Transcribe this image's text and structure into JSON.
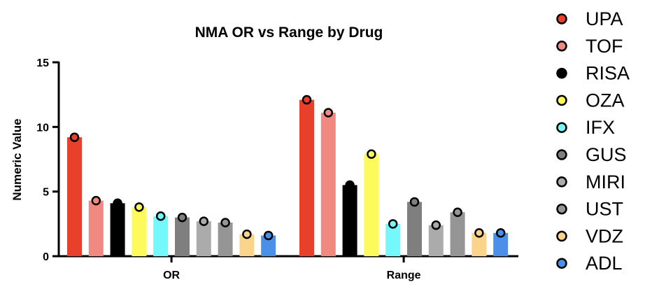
{
  "chart_data": {
    "type": "bar",
    "title": "NMA OR vs Range by Drug",
    "xlabel": "",
    "ylabel": "Numeric Value",
    "ylim": [
      0,
      15
    ],
    "yticks": [
      "0",
      "5",
      "10",
      "15"
    ],
    "categories": [
      "OR",
      "Range"
    ],
    "grid": false,
    "legend_position": "right",
    "series": [
      {
        "name": "UPA",
        "color": "#E8402A",
        "values": [
          9.2,
          12.1
        ]
      },
      {
        "name": "TOF",
        "color": "#F08A80",
        "values": [
          4.3,
          11.1
        ]
      },
      {
        "name": "RISA",
        "color": "#000000",
        "values": [
          4.1,
          5.5
        ]
      },
      {
        "name": "OZA",
        "color": "#FDFB5C",
        "values": [
          3.8,
          7.9
        ]
      },
      {
        "name": "IFX",
        "color": "#74F8FB",
        "values": [
          3.1,
          2.5
        ]
      },
      {
        "name": "GUS",
        "color": "#7F7F7F",
        "values": [
          3.0,
          4.2
        ]
      },
      {
        "name": "MIRI",
        "color": "#ABABAB",
        "values": [
          2.7,
          2.4
        ]
      },
      {
        "name": "UST",
        "color": "#959595",
        "values": [
          2.6,
          3.4
        ]
      },
      {
        "name": "VDZ",
        "color": "#FAD48A",
        "values": [
          1.7,
          1.8
        ]
      },
      {
        "name": "ADL",
        "color": "#4A90E8",
        "values": [
          1.6,
          1.8
        ]
      }
    ]
  }
}
